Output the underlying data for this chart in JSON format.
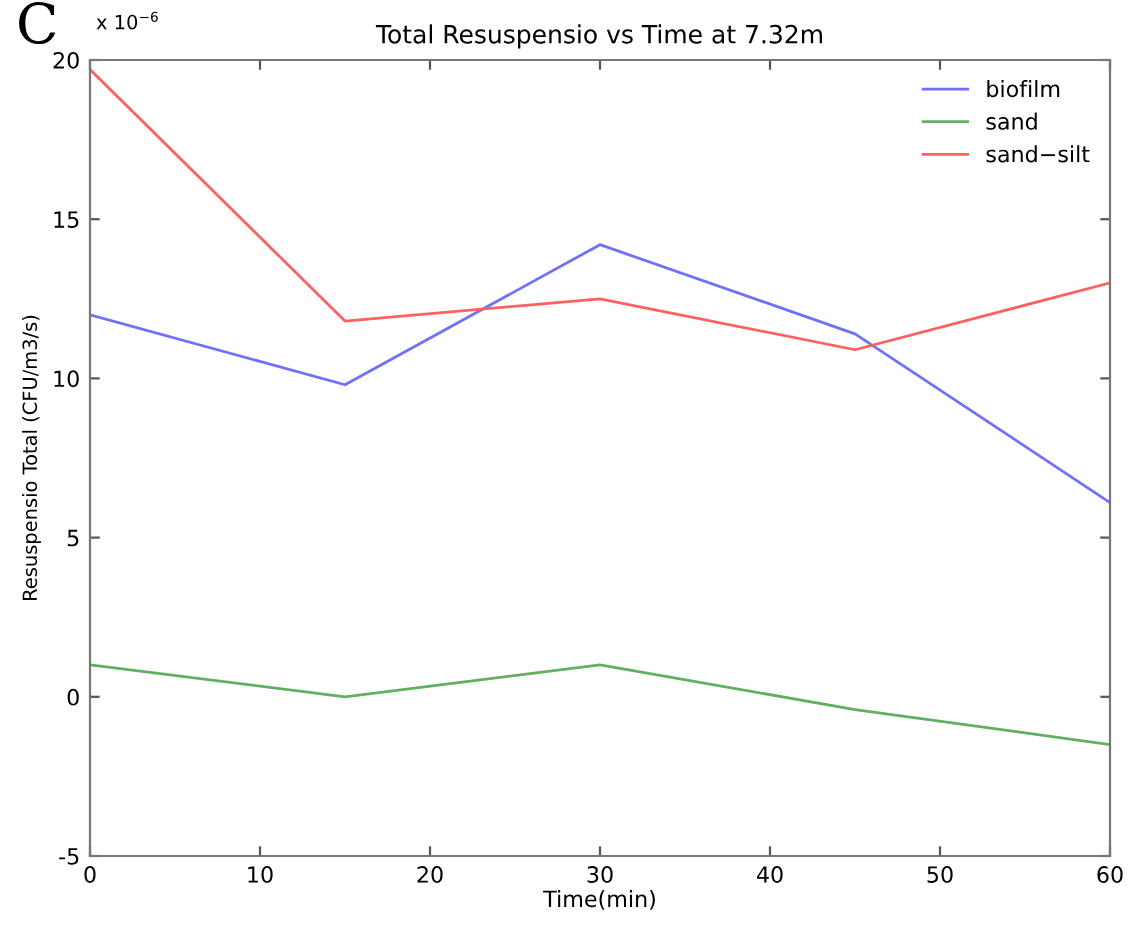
{
  "chart_data": {
    "type": "line",
    "title": "Total Resuspensio vs Time at 7.32m",
    "xlabel": "Time(min)",
    "ylabel": "Resuspensio Total (CFU/m3/s)",
    "annotations": [
      "x 10$^{−6}$",
      "C"
    ],
    "x": [
      0,
      15,
      30,
      45,
      60
    ],
    "series": [
      {
        "name": "biofilm",
        "color": "#7070ff",
        "values": [
          12.0,
          9.8,
          14.2,
          11.4,
          6.1
        ]
      },
      {
        "name": "sand",
        "color": "#60b060",
        "values": [
          1.0,
          0.0,
          1.0,
          -0.4,
          -1.5
        ]
      },
      {
        "name": "sand−silt",
        "color": "#ff6060",
        "values": [
          19.7,
          11.8,
          12.5,
          10.9,
          13.0
        ]
      }
    ],
    "xlim": [
      0,
      60
    ],
    "xticks": [
      0,
      10,
      20,
      30,
      40,
      50,
      60
    ],
    "ylim": [
      -5,
      20
    ],
    "yticks": [
      -5,
      0,
      5,
      10,
      15,
      20
    ],
    "grid": false,
    "legend": "top right"
  }
}
